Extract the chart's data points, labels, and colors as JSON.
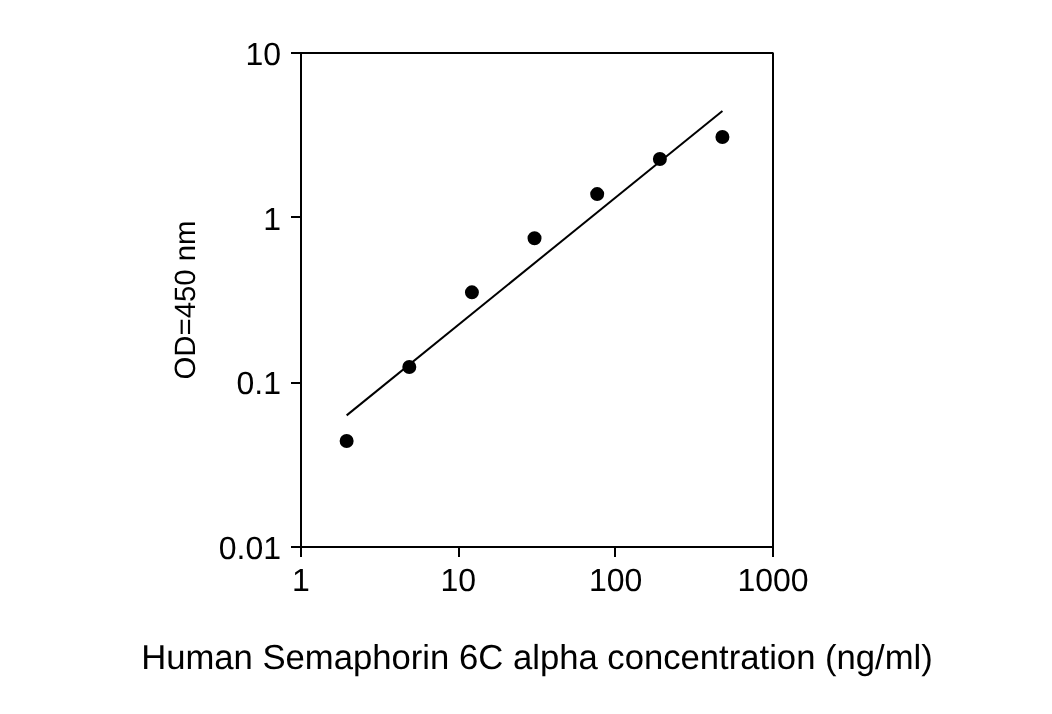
{
  "chart_data": {
    "type": "scatter",
    "xlabel": "Human Semaphorin 6C alpha concentration (ng/ml)",
    "ylabel": "OD=450 nm",
    "log": "xy",
    "xlim": [
      1,
      1000
    ],
    "ylim": [
      0.01,
      10
    ],
    "xticks": [
      1,
      10,
      100,
      1000
    ],
    "yticks": [
      0.01,
      0.1,
      1,
      10
    ],
    "grid": false,
    "marker": "circle",
    "series": [
      {
        "color": "#000000",
        "x": [
          1.95,
          4.88,
          12.2,
          30.5,
          76.3,
          191,
          477
        ],
        "values": [
          0.044,
          0.124,
          0.352,
          0.75,
          1.39,
          2.27,
          3.09
        ]
      },
      {
        "type": "line",
        "color": "#000000",
        "line_style": "solid",
        "marker": "none",
        "x": [
          1.95,
          477
        ],
        "values": [
          0.063,
          4.45
        ]
      }
    ]
  }
}
